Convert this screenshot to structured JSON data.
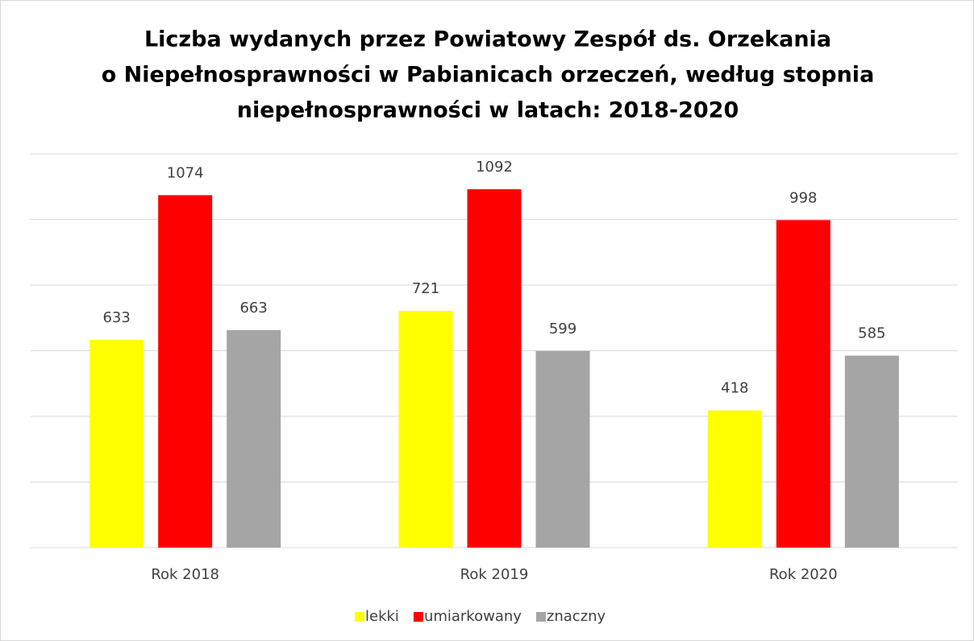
{
  "chart_data": {
    "type": "bar",
    "title": [
      "Liczba wydanych przez Powiatowy Zespół ds. Orzekania",
      "o Niepełnosprawności w Pabianicach orzeczeń, według stopnia",
      "niepełnosprawności w latach: 2018-2020"
    ],
    "categories": [
      "Rok 2018",
      "Rok 2019",
      "Rok 2020"
    ],
    "series": [
      {
        "name": "lekki",
        "color": "#ffff00",
        "values": [
          633,
          721,
          418
        ]
      },
      {
        "name": "umiarkowany",
        "color": "#ff0000",
        "values": [
          1074,
          1092,
          998
        ]
      },
      {
        "name": "znaczny",
        "color": "#a5a5a5",
        "values": [
          663,
          599,
          585
        ]
      }
    ],
    "ylim": [
      0,
      1200
    ],
    "yticks": [
      0,
      200,
      400,
      600,
      800,
      1000,
      1200
    ],
    "grid": true,
    "legend": "bottom"
  }
}
